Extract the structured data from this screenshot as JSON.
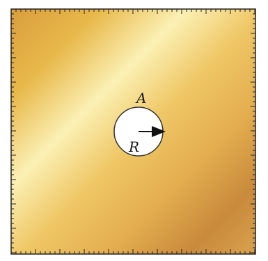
{
  "diagram": {
    "labels": {
      "hole": "A",
      "radius": "R"
    },
    "colors": {
      "gold_dark": "#c98a3c",
      "gold_mid": "#e6b84f",
      "gold_light": "#fbf0b4",
      "hole_fill": "#ffffff",
      "frame": "#222222",
      "arrow": "#111111"
    }
  }
}
